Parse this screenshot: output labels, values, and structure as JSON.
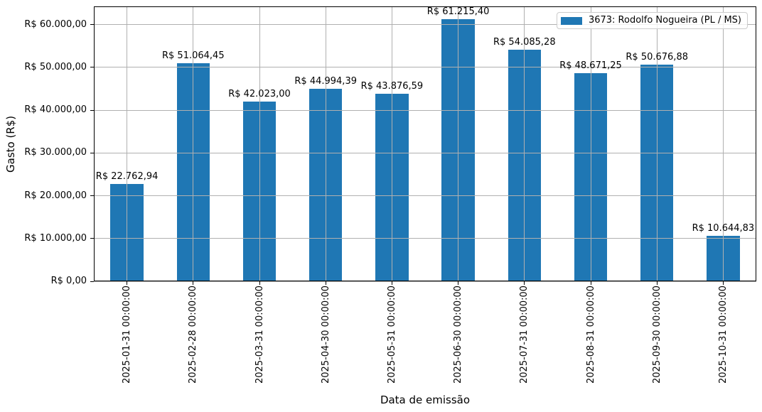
{
  "chart_data": {
    "type": "bar",
    "title": "",
    "xlabel": "Data de emissão",
    "ylabel": "Gasto (R$)",
    "legend_label": "3673: Rodolfo Nogueira (PL / MS)",
    "legend_position": "upper right",
    "bar_color": "#1f77b4",
    "grid": true,
    "grid_color": "#b0b0b0",
    "spine_color": "#000000",
    "background_color": "#ffffff",
    "categories": [
      "2025-01-31 00:00:00",
      "2025-02-28 00:00:00",
      "2025-03-31 00:00:00",
      "2025-04-30 00:00:00",
      "2025-05-31 00:00:00",
      "2025-06-30 00:00:00",
      "2025-07-31 00:00:00",
      "2025-08-31 00:00:00",
      "2025-09-30 00:00:00",
      "2025-10-31 00:00:00"
    ],
    "values": [
      22762.94,
      51064.45,
      42023.0,
      44994.39,
      43876.59,
      61215.4,
      54085.28,
      48671.25,
      50676.88,
      10644.83
    ],
    "value_labels": [
      "R$ 22.762,94",
      "R$ 51.064,45",
      "R$ 42.023,00",
      "R$ 44.994,39",
      "R$ 43.876,59",
      "R$ 61.215,40",
      "R$ 54.085,28",
      "R$ 48.671,25",
      "R$ 50.676,88",
      "R$ 10.644,83"
    ],
    "ylim": [
      0,
      64276
    ],
    "yticks": [
      {
        "value": 0,
        "label": "R$ 0,00"
      },
      {
        "value": 10000,
        "label": "R$ 10.000,00"
      },
      {
        "value": 20000,
        "label": "R$ 20.000,00"
      },
      {
        "value": 30000,
        "label": "R$ 30.000,00"
      },
      {
        "value": 40000,
        "label": "R$ 40.000,00"
      },
      {
        "value": 50000,
        "label": "R$ 50.000,00"
      },
      {
        "value": 60000,
        "label": "R$ 60.000,00"
      }
    ]
  }
}
